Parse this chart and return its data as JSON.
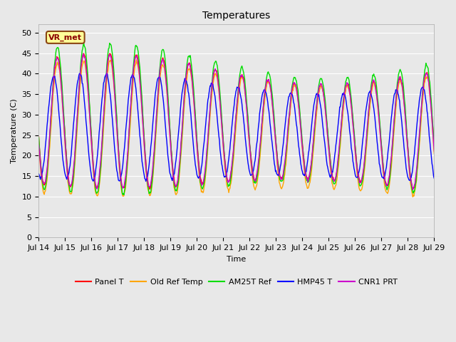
{
  "title": "Temperatures",
  "xlabel": "Time",
  "ylabel": "Temperature (C)",
  "ylim": [
    0,
    52
  ],
  "yticks": [
    0,
    5,
    10,
    15,
    20,
    25,
    30,
    35,
    40,
    45,
    50
  ],
  "x_tick_labels": [
    "Jul 14",
    "Jul 15",
    "Jul 16",
    "Jul 17",
    "Jul 18",
    "Jul 19",
    "Jul 20",
    "Jul 21",
    "Jul 22",
    "Jul 23",
    "Jul 24",
    "Jul 25",
    "Jul 26",
    "Jul 27",
    "Jul 28",
    "Jul 29"
  ],
  "series": [
    {
      "label": "Panel T",
      "color": "#ff0000",
      "lw": 1.0
    },
    {
      "label": "Old Ref Temp",
      "color": "#ffa500",
      "lw": 1.0
    },
    {
      "label": "AM25T Ref",
      "color": "#00dd00",
      "lw": 1.0
    },
    {
      "label": "HMP45 T",
      "color": "#0000ff",
      "lw": 1.0
    },
    {
      "label": "CNR1 PRT",
      "color": "#cc00cc",
      "lw": 1.0
    }
  ],
  "annotation_text": "VR_met",
  "fig_bg_color": "#e8e8e8",
  "plot_bg_color": "#e8e8e8",
  "grid_color": "#ffffff",
  "title_fontsize": 10,
  "label_fontsize": 8,
  "tick_fontsize": 8,
  "legend_fontsize": 8
}
